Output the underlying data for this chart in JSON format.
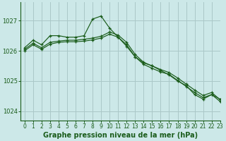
{
  "title": "Graphe pression niveau de la mer (hPa)",
  "background_color": "#cce8e8",
  "grid_color": "#aac8c8",
  "line_color": "#1a5c1a",
  "xlim": [
    -0.5,
    23
  ],
  "ylim": [
    1023.7,
    1027.6
  ],
  "yticks": [
    1024,
    1025,
    1026,
    1027
  ],
  "xticks": [
    0,
    1,
    2,
    3,
    4,
    5,
    6,
    7,
    8,
    9,
    10,
    11,
    12,
    13,
    14,
    15,
    16,
    17,
    18,
    19,
    20,
    21,
    22,
    23
  ],
  "series1": [
    1026.1,
    1026.35,
    1026.2,
    1026.5,
    1026.5,
    1026.45,
    1026.45,
    1026.5,
    1027.05,
    1027.15,
    1026.75,
    1026.45,
    1026.15,
    1025.8,
    1025.6,
    1025.5,
    1025.35,
    1025.2,
    1025.0,
    1024.85,
    1024.55,
    1024.4,
    1024.55,
    1024.4
  ],
  "series2": [
    1026.05,
    1026.25,
    1026.1,
    1026.28,
    1026.32,
    1026.35,
    1026.35,
    1026.38,
    1026.42,
    1026.48,
    1026.62,
    1026.52,
    1026.28,
    1025.88,
    1025.62,
    1025.5,
    1025.38,
    1025.28,
    1025.1,
    1024.9,
    1024.7,
    1024.52,
    1024.62,
    1024.38
  ],
  "series3": [
    1026.0,
    1026.2,
    1026.05,
    1026.22,
    1026.28,
    1026.3,
    1026.3,
    1026.32,
    1026.36,
    1026.42,
    1026.55,
    1026.45,
    1026.2,
    1025.8,
    1025.55,
    1025.42,
    1025.3,
    1025.22,
    1025.02,
    1024.82,
    1024.62,
    1024.45,
    1024.55,
    1024.32
  ],
  "ylabel_fontsize": 6,
  "xlabel_fontsize": 7,
  "tick_fontsize": 5.5
}
